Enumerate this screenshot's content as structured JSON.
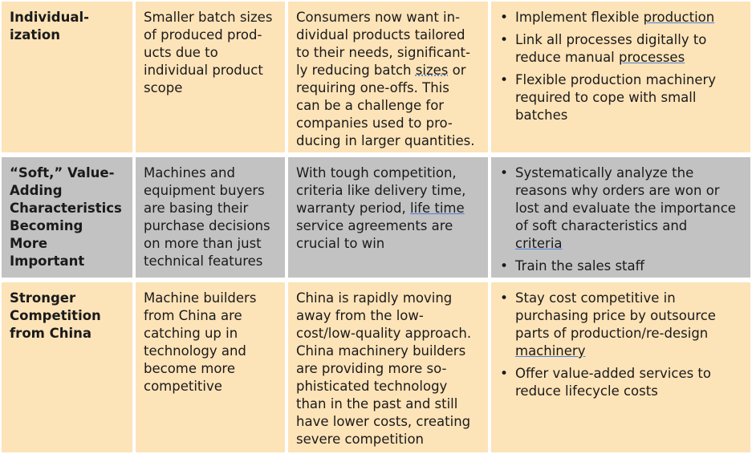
{
  "rows": [
    {
      "heading": "Individual-ization",
      "trend": "Smaller batch sizes of produced prod-ucts due to individual product scope",
      "impact": "Consumers now want in-dividual products tailored to their needs, significant-ly reducing batch sizes or requiring one-offs. This can be a challenge for companies used to pro-ducing in larger quantities.",
      "actions": [
        "Implement flexible production",
        "Link all processes digitally to reduce manual processes",
        "Flexible production machinery required to cope with small batches"
      ]
    },
    {
      "heading": "“Soft,” Value-Adding Characteristics Becoming More Important",
      "trend": "Machines and equipment buyers are basing their purchase decisions on more than just technical features",
      "impact": "With tough competition, criteria like delivery time, warranty period, life time service agreements are crucial to win",
      "actions": [
        "Systematically analyze the reasons why orders are won or lost and evaluate the importance of soft characteristics and criteria",
        "Train the sales staff"
      ]
    },
    {
      "heading": "Stronger Competition from China",
      "trend": "Machine builders from China are catching up in technology and become more competitive",
      "impact": "China is rapidly moving away from the low-cost/low-quality approach. China machinery builders are providing more so-phisticated technology than in the past and still have lower costs, creating severe competition",
      "actions": [
        "Stay cost competitive in purchasing price by outsource parts of production/re-design machinery",
        "Offer value-added services to reduce lifecycle costs"
      ]
    }
  ]
}
